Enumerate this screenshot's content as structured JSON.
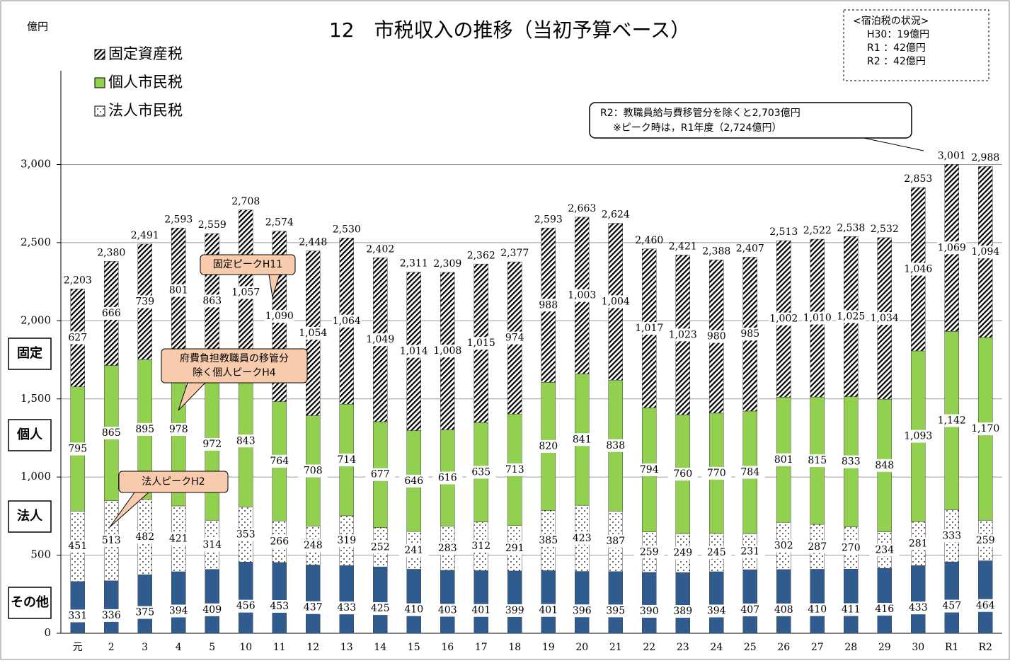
{
  "chart_data": {
    "type": "stacked_bar",
    "title": "12　市税収入の推移（当初予算ベース）",
    "y_unit": "億円",
    "categories": [
      "元",
      "2",
      "3",
      "4",
      "5",
      "10",
      "11",
      "12",
      "13",
      "14",
      "15",
      "16",
      "17",
      "18",
      "19",
      "20",
      "21",
      "22",
      "23",
      "24",
      "25",
      "26",
      "27",
      "28",
      "29",
      "30",
      "R1",
      "R2"
    ],
    "series": [
      {
        "color": "#2f5b8e",
        "pattern": "solid",
        "values": [
          331,
          336,
          375,
          394,
          409,
          456,
          453,
          437,
          433,
          425,
          410,
          403,
          401,
          399,
          401,
          396,
          395,
          390,
          389,
          394,
          407,
          408,
          410,
          411,
          416,
          433,
          457,
          464
        ]
      },
      {
        "name": "法人市民税",
        "color": "#000000",
        "pattern": "dots",
        "values": [
          451,
          513,
          482,
          421,
          314,
          353,
          266,
          248,
          319,
          252,
          241,
          283,
          312,
          291,
          385,
          423,
          387,
          259,
          249,
          245,
          231,
          302,
          287,
          270,
          234,
          281,
          333,
          259
        ]
      },
      {
        "name": "個人市民税",
        "color": "#92d050",
        "pattern": "solid",
        "values": [
          795,
          865,
          895,
          978,
          972,
          843,
          764,
          708,
          714,
          677,
          646,
          616,
          635,
          713,
          820,
          841,
          838,
          794,
          760,
          770,
          784,
          801,
          815,
          833,
          848,
          1093,
          1142,
          1170
        ],
        "value_labels": [
          "795",
          "865",
          "895",
          "978",
          "972",
          "843",
          "764",
          "708",
          "714",
          "677",
          "646",
          "616",
          "635",
          "713",
          "820",
          "841",
          "838",
          "794",
          "760",
          "770",
          "784",
          "801",
          "815",
          "833",
          "848",
          "1,093",
          "1,142",
          "1,170"
        ]
      },
      {
        "name": "固定資産税",
        "color": "#000000",
        "pattern": "hatch",
        "values": [
          627,
          666,
          739,
          801,
          863,
          1057,
          1090,
          1054,
          1064,
          1049,
          1014,
          1008,
          1015,
          974,
          988,
          1003,
          1004,
          1017,
          1023,
          980,
          985,
          1002,
          1010,
          1025,
          1034,
          1046,
          1069,
          1094
        ],
        "value_labels": [
          "627",
          "666",
          "739",
          "801",
          "863",
          "1,057",
          "1,090",
          "1,054",
          "1,064",
          "1,049",
          "1,014",
          "1,008",
          "1,015",
          "974",
          "988",
          "1,003",
          "1,004",
          "1,017",
          "1,023",
          "980",
          "985",
          "1,002",
          "1,010",
          "1,025",
          "1,034",
          "1,046",
          "1,069",
          "1,094"
        ]
      }
    ],
    "totals": [
      2203,
      2380,
      2491,
      2593,
      2559,
      2708,
      2574,
      2448,
      2530,
      2402,
      2311,
      2309,
      2362,
      2377,
      2593,
      2663,
      2624,
      2460,
      2421,
      2388,
      2407,
      2513,
      2522,
      2538,
      2532,
      2853,
      3001,
      2988
    ],
    "total_labels": [
      "2,203",
      "2,380",
      "2,491",
      "2,593",
      "2,559",
      "2,708",
      "2,574",
      "2,448",
      "2,530",
      "2,402",
      "2,311",
      "2,309",
      "2,362",
      "2,377",
      "2,593",
      "2,663",
      "2,624",
      "2,460",
      "2,421",
      "2,388",
      "2,407",
      "2,513",
      "2,522",
      "2,538",
      "2,532",
      "2,853",
      "3,001",
      "2,988"
    ],
    "ylim": [
      0,
      3600
    ],
    "yticks": [
      0,
      500,
      {
        "value": 1000,
        "label": "1,000"
      },
      {
        "value": 1500,
        "label": "1,500"
      },
      {
        "value": 2000,
        "label": "2,000"
      },
      {
        "value": 2500,
        "label": "2,500"
      },
      {
        "value": 3000,
        "label": "3,000"
      }
    ],
    "grid": true,
    "side_labels": [
      "固定",
      "個人",
      "法人",
      "その他"
    ],
    "annotations": [
      "固定ピークH11",
      "府費負担教職員の移管分",
      "除く個人ピークH4",
      "法人ピークH2",
      "R2：教職員給与費移管分を除くと2,703億円",
      "※ピーク時は，R1年度（2,724億円）"
    ],
    "note": [
      "<宿泊税の状況>",
      "H30：19億円",
      "R1 ：42億円",
      "R2 ：42億円"
    ]
  }
}
